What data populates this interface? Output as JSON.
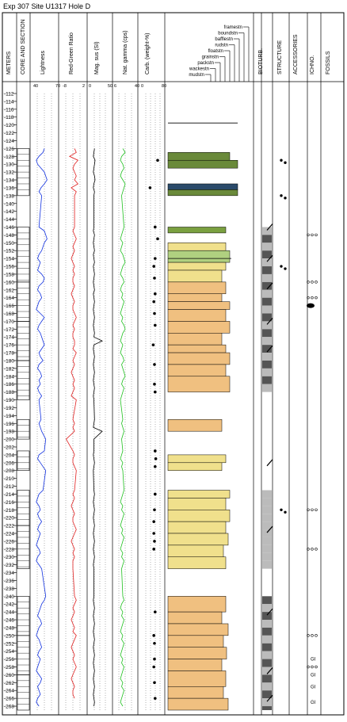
{
  "title": "Exp 307 Site U1317 Hole D",
  "columns": {
    "meters": "METERS",
    "core_section": "CORE AND SECTION",
    "lightness": "Lightness",
    "red_green": "Red-Green Ratio",
    "mag_sus": "Mag. sus (SI)",
    "nat_gamma": "Nat. gamma (cps)",
    "carb": "Carb. (weight-%)",
    "bioturb": "BIOTURB.",
    "structure": "STRUCTURE",
    "accessories": "ACCESSORIES",
    "ichno": "ICHNO.",
    "fossils": "FOSSILS"
  },
  "texture_scale": [
    "framestn",
    "boundstn",
    "bafflestn",
    "rudstn",
    "floatstn",
    "grainstn",
    "packstn",
    "wackestn",
    "mudstn"
  ],
  "axis_ticks": {
    "lightness": [
      "40",
      "70"
    ],
    "red_green": [
      "-8",
      "2"
    ],
    "mag_sus": [
      "0",
      "50"
    ],
    "nat_gamma": [
      "6",
      "40"
    ],
    "carb": [
      "0",
      "80"
    ]
  },
  "fossil_labels": [
    "GI",
    "GI",
    "GI",
    "GI"
  ],
  "chart_data": {
    "type": "line",
    "title": "Exp 307 Site U1317 Hole D",
    "ylabel": "METERS",
    "ylim": [
      112,
      269
    ],
    "depth_ticks": [
      112,
      114,
      116,
      118,
      120,
      122,
      124,
      126,
      128,
      130,
      132,
      134,
      136,
      138,
      140,
      142,
      144,
      146,
      148,
      150,
      152,
      154,
      156,
      158,
      160,
      162,
      164,
      166,
      168,
      170,
      172,
      174,
      176,
      178,
      180,
      182,
      184,
      186,
      188,
      190,
      192,
      194,
      196,
      198,
      200,
      202,
      204,
      206,
      208,
      210,
      212,
      214,
      216,
      218,
      220,
      222,
      224,
      226,
      228,
      230,
      232,
      234,
      236,
      238,
      240,
      242,
      244,
      246,
      248,
      250,
      252,
      254,
      256,
      258,
      260,
      262,
      264,
      266,
      268
    ],
    "tracks": [
      {
        "name": "Lightness",
        "xlim": [
          40,
          80
        ],
        "color": "#1030e0",
        "depth": [
          126,
          127,
          128,
          129,
          130,
          131,
          132,
          133,
          134,
          135,
          136,
          137,
          138,
          146,
          147,
          148,
          149,
          150,
          151,
          152,
          153,
          154,
          155,
          156,
          157,
          158,
          159,
          160,
          161,
          162,
          163,
          164,
          165,
          166,
          167,
          168,
          169,
          170,
          171,
          172,
          173,
          174,
          175,
          176,
          177,
          178,
          179,
          180,
          181,
          182,
          183,
          184,
          185,
          186,
          187,
          188,
          189,
          190,
          195,
          196,
          197,
          198,
          200,
          203,
          204,
          205,
          206,
          207,
          208,
          213,
          214,
          215,
          216,
          217,
          218,
          219,
          220,
          221,
          222,
          223,
          224,
          225,
          226,
          227,
          228,
          229,
          230,
          231,
          232,
          233,
          240,
          241,
          242,
          243,
          244,
          245,
          246,
          247,
          248,
          249,
          250,
          251,
          252,
          253,
          254,
          255,
          256,
          257,
          258,
          259,
          260,
          261,
          262,
          263,
          264,
          265,
          266,
          267,
          268
        ],
        "values": [
          60,
          58,
          52,
          48,
          50,
          55,
          60,
          62,
          64,
          60,
          55,
          52,
          56,
          52,
          60,
          62,
          64,
          60,
          58,
          56,
          52,
          50,
          54,
          52,
          50,
          56,
          60,
          58,
          52,
          50,
          54,
          56,
          52,
          50,
          48,
          54,
          60,
          56,
          52,
          50,
          54,
          56,
          58,
          60,
          56,
          52,
          54,
          58,
          52,
          50,
          54,
          56,
          52,
          54,
          50,
          52,
          56,
          52,
          55,
          52,
          54,
          56,
          62,
          60,
          52,
          50,
          54,
          58,
          62,
          58,
          52,
          50,
          48,
          52,
          54,
          50,
          52,
          56,
          52,
          50,
          54,
          52,
          50,
          48,
          52,
          54,
          50,
          48,
          52,
          56,
          62,
          60,
          56,
          54,
          52,
          50,
          54,
          56,
          52,
          50,
          48,
          52,
          54,
          56,
          52,
          50,
          54,
          52,
          50,
          48,
          52,
          56,
          54,
          50,
          52,
          54,
          50,
          48,
          52
        ]
      },
      {
        "name": "Red-Green Ratio",
        "xlim": [
          -8,
          8
        ],
        "color": "#e02020",
        "depth": [
          126,
          127,
          128,
          129,
          130,
          131,
          132,
          133,
          134,
          135,
          136,
          137,
          138,
          146,
          147,
          148,
          149,
          150,
          151,
          152,
          153,
          154,
          155,
          156,
          157,
          158,
          159,
          160,
          161,
          162,
          163,
          164,
          165,
          166,
          167,
          168,
          169,
          170,
          171,
          172,
          173,
          174,
          175,
          176,
          177,
          178,
          179,
          180,
          181,
          182,
          183,
          184,
          185,
          186,
          187,
          188,
          189,
          190,
          195,
          196,
          197,
          198,
          200,
          203,
          204,
          205,
          206,
          207,
          208,
          213,
          214,
          215,
          216,
          217,
          218,
          219,
          220,
          221,
          222,
          223,
          224,
          225,
          226,
          227,
          228,
          229,
          230,
          231,
          232,
          233,
          240,
          241,
          242,
          243,
          244,
          245,
          246,
          247,
          248,
          249,
          250,
          251,
          252,
          253,
          254,
          255,
          256,
          257,
          258,
          259,
          260,
          261,
          262,
          263,
          264,
          265,
          266,
          267,
          268
        ],
        "values": [
          1,
          2,
          -2,
          3,
          1,
          0,
          1,
          2,
          1,
          3,
          -1,
          2,
          1,
          1,
          0,
          1,
          2,
          1,
          0,
          1,
          0,
          -1,
          0,
          1,
          0,
          1,
          0,
          0,
          1,
          0,
          -1,
          0,
          1,
          0,
          0,
          1,
          2,
          1,
          0,
          1,
          0,
          0,
          1,
          1,
          0,
          2,
          1,
          0,
          1,
          0,
          -1,
          0,
          1,
          0,
          1,
          0,
          -1,
          2,
          0,
          1,
          0,
          1,
          -4,
          0,
          1,
          0,
          0,
          1,
          2,
          1,
          0,
          1,
          0,
          -1,
          0,
          1,
          0,
          0,
          1,
          2,
          1,
          0,
          -1,
          0,
          1,
          0,
          1,
          0,
          0,
          0,
          1,
          2,
          1,
          0,
          1,
          0,
          -1,
          0,
          1,
          0,
          2,
          1,
          0,
          -1,
          0,
          1,
          0,
          1,
          2,
          1,
          0,
          -1,
          0,
          1,
          0,
          0,
          1
        ]
      },
      {
        "name": "Mag. sus (SI)",
        "xlim": [
          0,
          80
        ],
        "color": "#000000",
        "depth": [
          126,
          127,
          128,
          129,
          130,
          131,
          132,
          133,
          134,
          135,
          136,
          137,
          138,
          146,
          147,
          148,
          149,
          150,
          151,
          152,
          153,
          154,
          155,
          156,
          157,
          158,
          159,
          160,
          161,
          162,
          163,
          164,
          165,
          166,
          167,
          168,
          169,
          170,
          171,
          172,
          173,
          174,
          175,
          176,
          177,
          178,
          179,
          180,
          181,
          182,
          183,
          184,
          185,
          186,
          187,
          188,
          189,
          190,
          195,
          196,
          197,
          198,
          200,
          203,
          204,
          205,
          206,
          207,
          208,
          213,
          214,
          215,
          216,
          217,
          218,
          219,
          220,
          221,
          222,
          223,
          224,
          225,
          226,
          227,
          228,
          229,
          230,
          231,
          232,
          233,
          240,
          241,
          242,
          243,
          244,
          245,
          246,
          247,
          248,
          249,
          250,
          251,
          252,
          253,
          254,
          255,
          256,
          257,
          258,
          259,
          260,
          261,
          262,
          263,
          264,
          265,
          266,
          267,
          268
        ],
        "values": [
          22,
          20,
          18,
          24,
          22,
          20,
          18,
          22,
          24,
          20,
          18,
          22,
          20,
          20,
          18,
          22,
          20,
          18,
          20,
          22,
          18,
          20,
          22,
          18,
          20,
          22,
          20,
          18,
          20,
          22,
          18,
          20,
          22,
          20,
          18,
          20,
          22,
          20,
          18,
          20,
          22,
          20,
          48,
          20,
          18,
          20,
          22,
          20,
          18,
          20,
          22,
          20,
          18,
          20,
          22,
          20,
          18,
          20,
          22,
          20,
          18,
          48,
          20,
          20,
          18,
          20,
          22,
          20,
          18,
          20,
          22,
          20,
          18,
          20,
          22,
          20,
          18,
          20,
          22,
          20,
          18,
          20,
          22,
          20,
          18,
          20,
          22,
          20,
          18,
          20,
          20,
          18,
          20,
          22,
          20,
          18,
          20,
          22,
          20,
          18,
          20,
          22,
          20,
          18,
          20,
          22,
          20,
          18,
          20,
          22,
          20,
          18,
          20,
          22,
          20,
          18,
          20,
          22,
          20
        ]
      },
      {
        "name": "Nat. gamma (cps)",
        "xlim": [
          6,
          46
        ],
        "color": "#20c020",
        "depth": [
          126,
          127,
          128,
          129,
          130,
          131,
          132,
          133,
          134,
          135,
          136,
          137,
          138,
          146,
          147,
          148,
          149,
          150,
          151,
          152,
          153,
          154,
          155,
          156,
          157,
          158,
          159,
          160,
          161,
          162,
          163,
          164,
          165,
          166,
          167,
          168,
          169,
          170,
          171,
          172,
          173,
          174,
          175,
          176,
          177,
          178,
          179,
          180,
          181,
          182,
          183,
          184,
          185,
          186,
          187,
          188,
          189,
          190,
          195,
          196,
          197,
          198,
          200,
          203,
          204,
          205,
          206,
          207,
          208,
          213,
          214,
          215,
          216,
          217,
          218,
          219,
          220,
          221,
          222,
          223,
          224,
          225,
          226,
          227,
          228,
          229,
          230,
          231,
          232,
          233,
          240,
          241,
          242,
          243,
          244,
          245,
          246,
          247,
          248,
          249,
          250,
          251,
          252,
          253,
          254,
          255,
          256,
          257,
          258,
          259,
          260,
          261,
          262,
          263,
          264,
          265,
          266,
          267,
          268
        ],
        "values": [
          22,
          26,
          20,
          18,
          22,
          24,
          20,
          18,
          22,
          26,
          24,
          22,
          20,
          24,
          22,
          20,
          18,
          22,
          20,
          18,
          22,
          24,
          26,
          22,
          20,
          18,
          22,
          24,
          20,
          18,
          22,
          20,
          24,
          22,
          20,
          18,
          22,
          20,
          24,
          26,
          22,
          20,
          18,
          22,
          20,
          18,
          22,
          24,
          20,
          22,
          24,
          26,
          22,
          20,
          24,
          22,
          20,
          18,
          22,
          20,
          22,
          24,
          20,
          22,
          20,
          18,
          22,
          20,
          22,
          24,
          22,
          20,
          18,
          22,
          20,
          24,
          22,
          20,
          18,
          22,
          20,
          24,
          22,
          20,
          18,
          22,
          20,
          24,
          22,
          20,
          22,
          24,
          20,
          18,
          22,
          20,
          24,
          22,
          20,
          18,
          22,
          20,
          24,
          22,
          20,
          18,
          22,
          20,
          24,
          22,
          20,
          18,
          22,
          20,
          24,
          22,
          20,
          18,
          22
        ]
      },
      {
        "name": "Carb. (weight-%)",
        "xlim": [
          0,
          80
        ],
        "color": "#000000",
        "depth": [
          129,
          136,
          146,
          149,
          154,
          156,
          159,
          163,
          165,
          168,
          171,
          176,
          181,
          186,
          188,
          203,
          205,
          207,
          214,
          218,
          221,
          224,
          226,
          228,
          244,
          250,
          252,
          256,
          258,
          262,
          266
        ],
        "values": [
          60,
          36,
          52,
          60,
          52,
          48,
          50,
          52,
          48,
          50,
          52,
          46,
          50,
          50,
          52,
          52,
          54,
          52,
          52,
          50,
          48,
          48,
          50,
          48,
          52,
          48,
          50,
          50,
          48,
          50,
          52
        ]
      }
    ]
  }
}
